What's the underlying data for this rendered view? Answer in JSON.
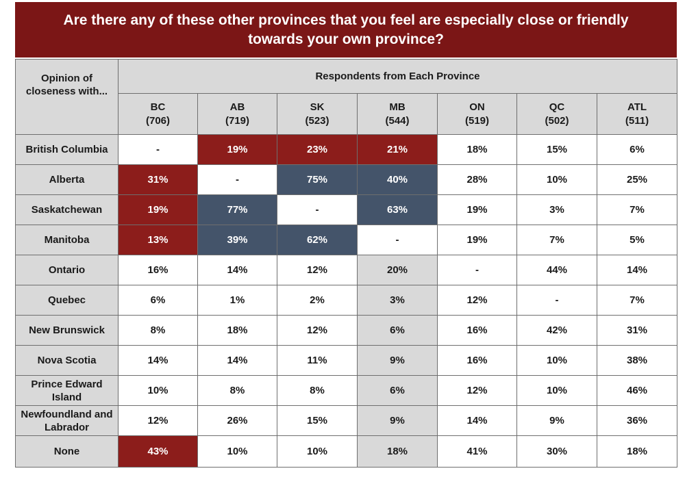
{
  "chart_data": {
    "type": "table",
    "title": "Are there any of these other provinces that you feel are especially close or friendly towards your own province?",
    "row_header": "Opinion of closeness with...",
    "column_group": "Respondents from Each Province",
    "columns": [
      {
        "name": "BC",
        "n": "(706)"
      },
      {
        "name": "AB",
        "n": "(719)"
      },
      {
        "name": "SK",
        "n": "(523)"
      },
      {
        "name": "MB",
        "n": "(544)"
      },
      {
        "name": "ON",
        "n": "(519)"
      },
      {
        "name": "QC",
        "n": "(502)"
      },
      {
        "name": "ATL",
        "n": "(511)"
      }
    ],
    "rows": [
      {
        "label": "British Columbia",
        "values": [
          "-",
          "19%",
          "23%",
          "21%",
          "18%",
          "15%",
          "6%"
        ],
        "fills": [
          "white",
          "red",
          "red",
          "red",
          "white",
          "white",
          "white"
        ]
      },
      {
        "label": "Alberta",
        "values": [
          "31%",
          "-",
          "75%",
          "40%",
          "28%",
          "10%",
          "25%"
        ],
        "fills": [
          "red",
          "white",
          "blue",
          "blue",
          "white",
          "white",
          "white"
        ]
      },
      {
        "label": "Saskatchewan",
        "values": [
          "19%",
          "77%",
          "-",
          "63%",
          "19%",
          "3%",
          "7%"
        ],
        "fills": [
          "red",
          "blue",
          "white",
          "blue",
          "white",
          "white",
          "white"
        ]
      },
      {
        "label": "Manitoba",
        "values": [
          "13%",
          "39%",
          "62%",
          "-",
          "19%",
          "7%",
          "5%"
        ],
        "fills": [
          "red",
          "blue",
          "blue",
          "white",
          "white",
          "white",
          "white"
        ]
      },
      {
        "label": "Ontario",
        "values": [
          "16%",
          "14%",
          "12%",
          "20%",
          "-",
          "44%",
          "14%"
        ],
        "fills": [
          "white",
          "white",
          "white",
          "gray",
          "white",
          "white",
          "white"
        ]
      },
      {
        "label": "Quebec",
        "values": [
          "6%",
          "1%",
          "2%",
          "3%",
          "12%",
          "-",
          "7%"
        ],
        "fills": [
          "white",
          "white",
          "white",
          "gray",
          "white",
          "white",
          "white"
        ]
      },
      {
        "label": "New Brunswick",
        "values": [
          "8%",
          "18%",
          "12%",
          "6%",
          "16%",
          "42%",
          "31%"
        ],
        "fills": [
          "white",
          "white",
          "white",
          "gray",
          "white",
          "white",
          "white"
        ]
      },
      {
        "label": "Nova Scotia",
        "values": [
          "14%",
          "14%",
          "11%",
          "9%",
          "16%",
          "10%",
          "38%"
        ],
        "fills": [
          "white",
          "white",
          "white",
          "gray",
          "white",
          "white",
          "white"
        ]
      },
      {
        "label": "Prince Edward Island",
        "values": [
          "10%",
          "8%",
          "8%",
          "6%",
          "12%",
          "10%",
          "46%"
        ],
        "fills": [
          "white",
          "white",
          "white",
          "gray",
          "white",
          "white",
          "white"
        ]
      },
      {
        "label": "Newfoundland and Labrador",
        "values": [
          "12%",
          "26%",
          "15%",
          "9%",
          "14%",
          "9%",
          "36%"
        ],
        "fills": [
          "white",
          "white",
          "white",
          "gray",
          "white",
          "white",
          "white"
        ]
      },
      {
        "label": "None",
        "values": [
          "43%",
          "10%",
          "10%",
          "18%",
          "41%",
          "30%",
          "18%"
        ],
        "fills": [
          "red",
          "white",
          "white",
          "gray",
          "white",
          "white",
          "white"
        ]
      }
    ]
  },
  "colors": {
    "title_background": "#7b1616",
    "highlight_red": "#8c1d1b",
    "highlight_blue": "#44546a",
    "header_gray": "#d9d9d9",
    "border": "#6e6e6e"
  }
}
